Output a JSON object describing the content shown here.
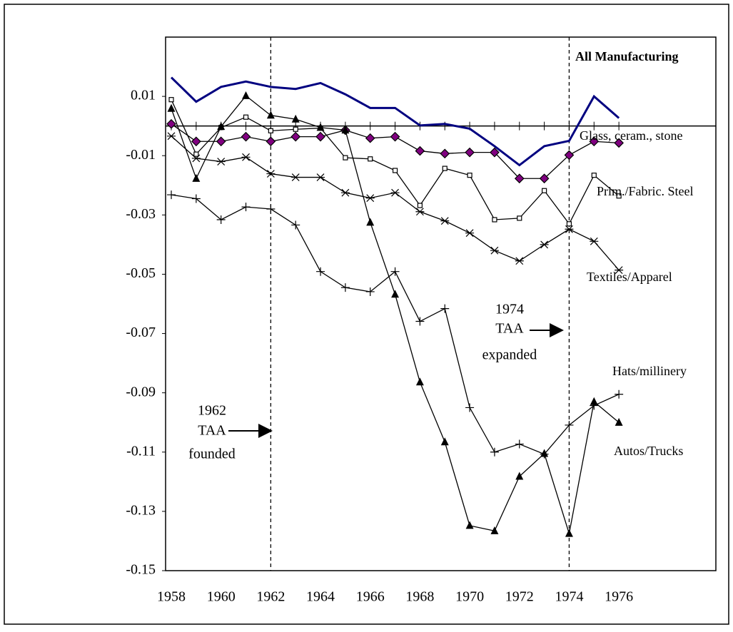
{
  "chart_data": {
    "type": "line",
    "x": [
      1958,
      1959,
      1960,
      1961,
      1962,
      1963,
      1964,
      1965,
      1966,
      1967,
      1968,
      1969,
      1970,
      1971,
      1972,
      1973,
      1974,
      1975,
      1976
    ],
    "xlim": [
      1957.77,
      1979.9
    ],
    "xticks": [
      1958,
      1960,
      1962,
      1964,
      1966,
      1968,
      1970,
      1972,
      1974,
      1976
    ],
    "ylim": [
      -0.15,
      0.03
    ],
    "yticks": [
      0.01,
      -0.01,
      -0.03,
      -0.05,
      -0.07,
      -0.09,
      -0.11,
      -0.13,
      -0.15
    ],
    "reference_lines": [
      1962,
      1974
    ],
    "series": [
      {
        "name": "All Manufacturing",
        "color": "#000080",
        "marker": "none",
        "values": [
          0.0164,
          0.0082,
          0.0132,
          0.015,
          0.0132,
          0.0125,
          0.0145,
          0.0107,
          0.0061,
          0.0061,
          0.0002,
          0.0007,
          -0.0009,
          -0.0068,
          -0.0132,
          -0.0068,
          -0.005,
          0.01,
          0.0027
        ]
      },
      {
        "name": "Glass, ceram., stone",
        "color": "#000000",
        "marker": "diamond",
        "marker_color": "#800080",
        "values": [
          0.0007,
          -0.0052,
          -0.0052,
          -0.0036,
          -0.0052,
          -0.0036,
          -0.0036,
          -0.0014,
          -0.0041,
          -0.0036,
          -0.0084,
          -0.0093,
          -0.0089,
          -0.0089,
          -0.0177,
          -0.0177,
          -0.0098,
          -0.0052,
          -0.0057
        ]
      },
      {
        "name": "Prim./Fabric. Steel",
        "color": "#000000",
        "marker": "square",
        "marker_color": "#ffffff",
        "values": [
          0.0089,
          -0.0095,
          -0.0005,
          0.003,
          -0.0016,
          -0.0011,
          -0.0007,
          -0.0107,
          -0.0111,
          -0.015,
          -0.0268,
          -0.0143,
          -0.0166,
          -0.0316,
          -0.0311,
          -0.0218,
          -0.033,
          -0.0166,
          -0.0236
        ]
      },
      {
        "name": "Textiles/Apparel",
        "color": "#000000",
        "marker": "asterisk",
        "values": [
          -0.0034,
          -0.0109,
          -0.012,
          -0.0105,
          -0.0161,
          -0.0173,
          -0.0173,
          -0.0225,
          -0.0243,
          -0.0225,
          -0.0289,
          -0.032,
          -0.0361,
          -0.042,
          -0.0455,
          -0.04,
          -0.0348,
          -0.0389,
          -0.0486
        ]
      },
      {
        "name": "Hats/millinery",
        "color": "#000000",
        "marker": "plus",
        "values": [
          -0.0232,
          -0.0245,
          -0.0316,
          -0.0273,
          -0.028,
          -0.0334,
          -0.0491,
          -0.0545,
          -0.0559,
          -0.0491,
          -0.0659,
          -0.0616,
          -0.095,
          -0.11,
          -0.1073,
          -0.1107,
          -0.1009,
          -0.0943,
          -0.0905
        ]
      },
      {
        "name": "Autos/Trucks",
        "color": "#000000",
        "marker": "triangle",
        "marker_color": "#000000",
        "values": [
          0.0059,
          -0.0177,
          -0.0002,
          0.0102,
          0.0036,
          0.0023,
          -0.0005,
          -0.0014,
          -0.0325,
          -0.0568,
          -0.0864,
          -0.1066,
          -0.1348,
          -0.1366,
          -0.1182,
          -0.1105,
          -0.1375,
          -0.093,
          -0.1
        ]
      }
    ],
    "annotations": [
      [
        "1962",
        "TAA",
        "founded"
      ],
      [
        "1974",
        "TAA",
        "expanded"
      ]
    ]
  }
}
